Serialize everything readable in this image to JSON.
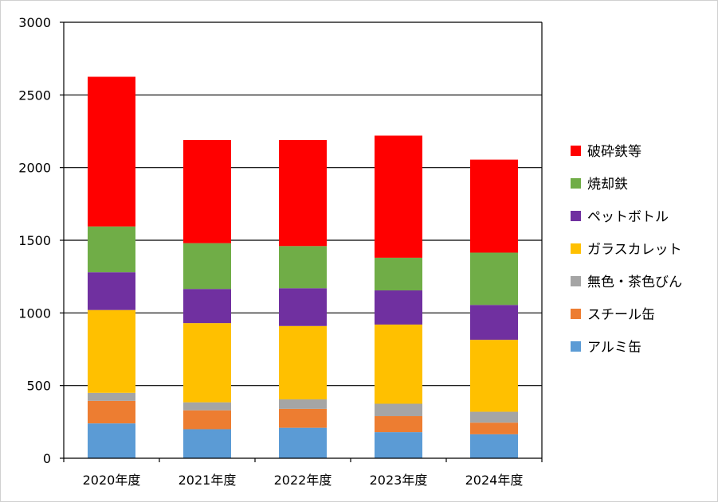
{
  "chart_data": {
    "type": "bar",
    "stacked": true,
    "title": "",
    "xlabel": "",
    "ylabel": "",
    "ylim": [
      0,
      3000
    ],
    "yticks": [
      0,
      500,
      1000,
      1500,
      2000,
      2500,
      3000
    ],
    "grid": "horizontal",
    "legend_position": "right",
    "categories": [
      "2020年度",
      "2021年度",
      "2022年度",
      "2023年度",
      "2024年度"
    ],
    "series": [
      {
        "name": "アルミ缶",
        "color": "#5b9bd5",
        "values": [
          240,
          200,
          210,
          180,
          165
        ]
      },
      {
        "name": "スチール缶",
        "color": "#ed7d31",
        "values": [
          155,
          130,
          130,
          110,
          80
        ]
      },
      {
        "name": "無色・茶色びん",
        "color": "#a5a5a5",
        "values": [
          55,
          55,
          65,
          85,
          75
        ]
      },
      {
        "name": "ガラスカレット",
        "color": "#ffc000",
        "values": [
          570,
          545,
          505,
          545,
          495
        ]
      },
      {
        "name": "ペットボトル",
        "color": "#7030a0",
        "values": [
          260,
          235,
          260,
          235,
          240
        ]
      },
      {
        "name": "焼却鉄",
        "color": "#70ad47",
        "values": [
          315,
          315,
          290,
          225,
          360
        ]
      },
      {
        "name": "破砕鉄等",
        "color": "#ff0000",
        "values": [
          1030,
          710,
          730,
          840,
          640
        ]
      }
    ]
  }
}
